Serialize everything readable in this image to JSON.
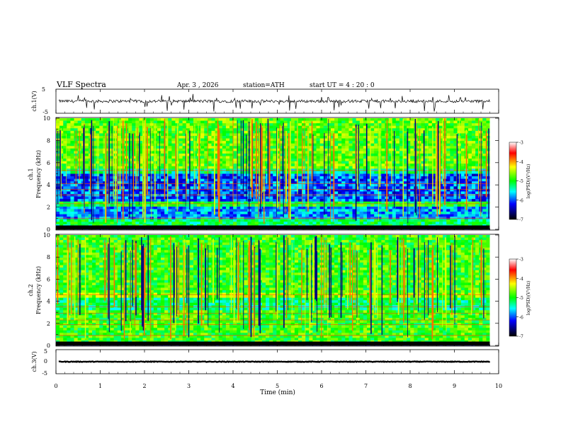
{
  "header": {
    "title": "VLF  Spectra",
    "date": "Apr. 3  , 2026",
    "station": "station=ATH",
    "start_time": "start  UT  =   4  : 20 : 0"
  },
  "colorbar": {
    "label": "log(PSD)(V²/Hz)",
    "ticks": [
      "-3",
      "-4",
      "-5",
      "-6",
      "-7"
    ],
    "colors": [
      "#ffffff",
      "#ff0000",
      "#ffff00",
      "#00ff00",
      "#00ffff",
      "#0000ff",
      "#000000"
    ]
  },
  "chart_data": [
    {
      "type": "line",
      "id": "ch1-waveform",
      "ylabel": "ch.1(V)",
      "ylim": [
        -5,
        5
      ],
      "y_ticks": [
        "5",
        "-5"
      ],
      "xlim": [
        0,
        10
      ],
      "description_values": "noisy signal centered near 0 V with spikes to about -3 V"
    },
    {
      "type": "heatmap",
      "id": "ch1-spectrogram",
      "channel_label": "ch.1",
      "ylabel": "Frequency  (kHz)",
      "ylim": [
        0,
        10
      ],
      "y_ticks": [
        "0",
        "2",
        "4",
        "6",
        "8",
        "10"
      ],
      "xlim": [
        0,
        9.8
      ],
      "bands": [
        {
          "from": 0,
          "to": 0.3,
          "level": -7
        },
        {
          "from": 0.3,
          "to": 1.0,
          "level": -5.2
        },
        {
          "from": 1.0,
          "to": 2.0,
          "level": -5.8
        },
        {
          "from": 2.0,
          "to": 2.5,
          "level": -5.0
        },
        {
          "from": 2.5,
          "to": 5.0,
          "level": -6.0
        },
        {
          "from": 5.0,
          "to": 5.4,
          "level": -5.3
        },
        {
          "from": 5.4,
          "to": 10.0,
          "level": -4.8
        }
      ],
      "tones_khz": [
        1.0,
        2.3,
        3.1,
        3.6,
        4.1,
        5.3
      ],
      "notes": "broadband sferics (vertical streaks) throughout"
    },
    {
      "type": "heatmap",
      "id": "ch2-spectrogram",
      "channel_label": "ch.2",
      "ylabel": "Frequency  (kHz)",
      "ylim": [
        0,
        10
      ],
      "y_ticks": [
        "0",
        "2",
        "4",
        "6",
        "8",
        "10"
      ],
      "xlim": [
        0,
        9.8
      ],
      "bands": [
        {
          "from": 0,
          "to": 0.2,
          "level": -7
        },
        {
          "from": 0.2,
          "to": 1.0,
          "level": -4.9
        },
        {
          "from": 1.0,
          "to": 3.2,
          "level": -4.9
        },
        {
          "from": 3.2,
          "to": 4.3,
          "level": -5.2
        },
        {
          "from": 4.3,
          "to": 4.8,
          "level": -4.6
        },
        {
          "from": 4.8,
          "to": 10.0,
          "level": -4.9
        }
      ],
      "tones_khz": [
        0.9,
        1.9,
        2.3,
        2.9,
        3.5,
        4.6
      ],
      "notes": "broadband sferics (vertical streaks) throughout"
    },
    {
      "type": "line",
      "id": "ch3-waveform",
      "ylabel": "ch.3(V)",
      "ylim": [
        -5,
        5
      ],
      "y_ticks": [
        "5",
        "0",
        "-5"
      ],
      "xlim": [
        0,
        10
      ],
      "description_values": "flat signal near -1 V"
    }
  ],
  "x_axis": {
    "label": "Time  (min)",
    "ticks": [
      "0",
      "1",
      "2",
      "3",
      "4",
      "5",
      "6",
      "7",
      "8",
      "9",
      "10"
    ],
    "range": [
      0,
      10
    ]
  }
}
